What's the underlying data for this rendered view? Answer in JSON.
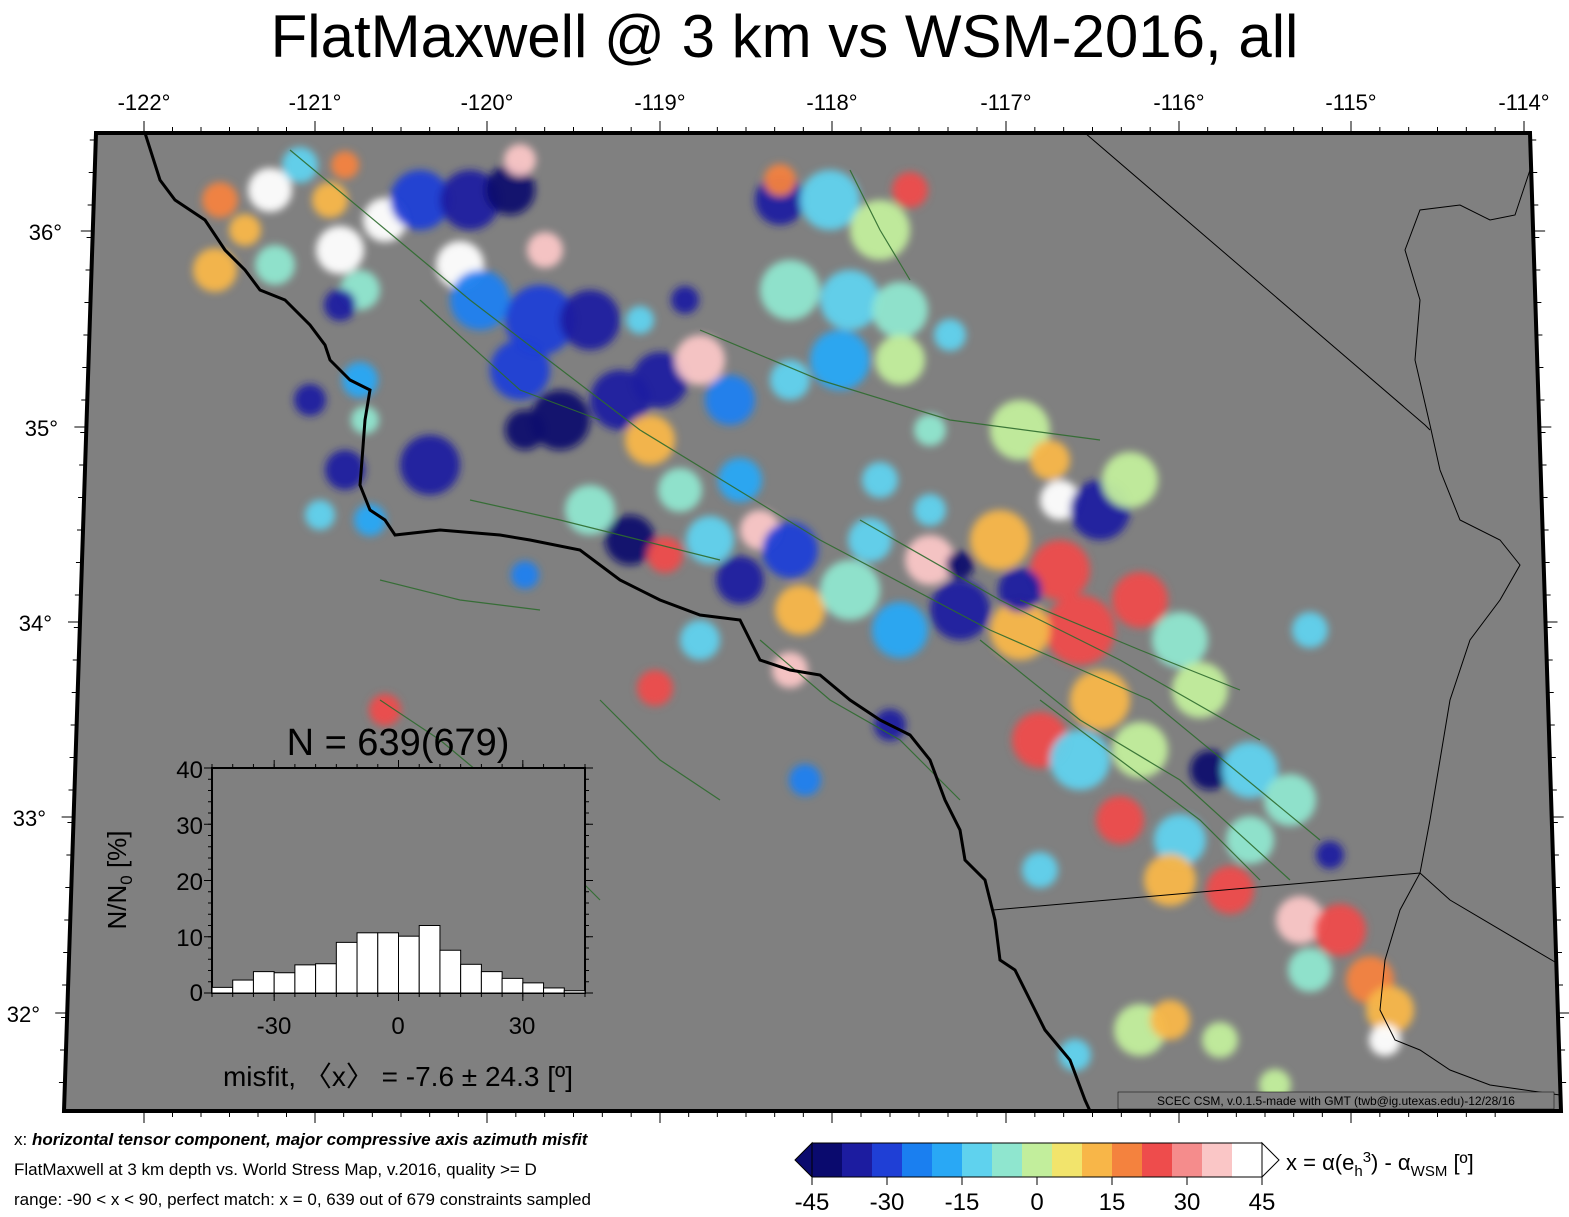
{
  "title": "FlatMaxwell @ 3 km vs WSM-2016, all",
  "map": {
    "lon_ticks": [
      "-122°",
      "-121°",
      "-120°",
      "-119°",
      "-118°",
      "-117°",
      "-116°",
      "-115°",
      "-114°"
    ],
    "lat_ticks": [
      "36°",
      "35°",
      "34°",
      "33°",
      "32°"
    ],
    "background_color": "#808080",
    "credit": "SCEC CSM, v.0.1.5-made with GMT (twb@ig.utexas.edu)-12/28/16"
  },
  "histogram": {
    "n_label": "N = 639(679)",
    "ylabel": "N/N",
    "ylabel_sub": "0",
    "ylabel_unit": " [%]",
    "yticks": [
      "0",
      "10",
      "20",
      "30",
      "40"
    ],
    "xticks": [
      "-30",
      "0",
      "30"
    ],
    "xlabel": "misfit, 〈x〉 = -7.6 ± 24.3 [º]"
  },
  "chart_data": {
    "type": "bar",
    "x": [
      -42.5,
      -37.5,
      -32.5,
      -27.5,
      -22.5,
      -17.5,
      -12.5,
      -7.5,
      -2.5,
      2.5,
      7.5,
      12.5,
      17.5,
      22.5,
      27.5,
      32.5,
      37.5,
      42.5
    ],
    "values": [
      1.0,
      2.3,
      3.8,
      3.6,
      5.0,
      5.2,
      9.0,
      10.7,
      10.7,
      10.1,
      12.0,
      7.6,
      5.1,
      3.8,
      2.6,
      1.8,
      0.9,
      0.4
    ],
    "xlabel": "misfit, 〈x〉 = -7.6 ± 24.3 [º]",
    "ylabel": "N/N0 [%]",
    "xlim": [
      -45,
      45
    ],
    "ylim": [
      0,
      40
    ],
    "bar_color": "#ffffff"
  },
  "colorbar": {
    "ticks": [
      "-45",
      "-30",
      "-15",
      "0",
      "15",
      "30",
      "45"
    ],
    "label_main": "x = α(e",
    "label_sub": "h",
    "label_sup": "3",
    "label_rest": ") - α",
    "label_sub2": "WSM",
    "label_unit": " [º]",
    "colors": [
      "#0a0a6e",
      "#1c1ca0",
      "#1f3fd6",
      "#1a7ff0",
      "#29a8f5",
      "#5fd2ee",
      "#8fe6cf",
      "#c2ee9c",
      "#f2e46c",
      "#f8b648",
      "#f4823e",
      "#ee4c4c",
      "#f58c8c",
      "#fac6c6",
      "#ffffff"
    ]
  },
  "footer": {
    "line1_prefix": "x: ",
    "line1_bold": "horizontal tensor component, major compressive axis azimuth misfit",
    "line2": "FlatMaxwell at 3 km depth vs.  World Stress Map, v.2016, quality >= D",
    "line3": "range: -90 < x < 90, perfect match: x = 0, 639 out of 679 constraints sampled"
  }
}
